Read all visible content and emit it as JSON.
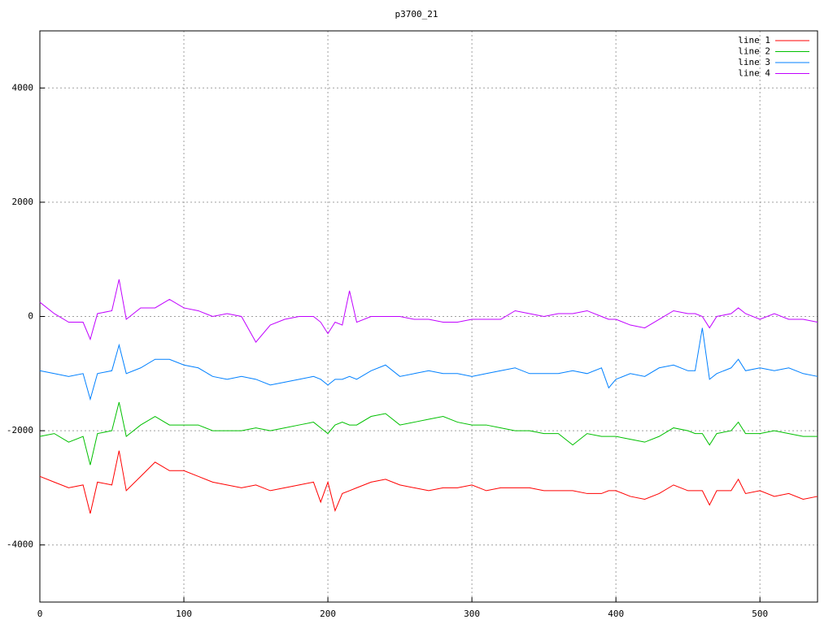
{
  "chart_data": {
    "type": "line",
    "title": "p3700_21",
    "x": [
      0,
      10,
      20,
      30,
      35,
      40,
      50,
      55,
      60,
      70,
      80,
      90,
      100,
      110,
      120,
      130,
      140,
      150,
      160,
      170,
      180,
      190,
      195,
      200,
      205,
      210,
      215,
      220,
      230,
      240,
      250,
      260,
      270,
      280,
      290,
      300,
      310,
      320,
      330,
      340,
      350,
      360,
      370,
      380,
      390,
      395,
      400,
      410,
      420,
      430,
      440,
      450,
      455,
      460,
      465,
      470,
      480,
      485,
      490,
      500,
      510,
      520,
      530,
      540
    ],
    "series": [
      {
        "name": "line 1",
        "color": "#ff0000",
        "values": [
          -2800,
          -2900,
          -3000,
          -2950,
          -3450,
          -2900,
          -2950,
          -2350,
          -3050,
          -2800,
          -2550,
          -2700,
          -2700,
          -2800,
          -2900,
          -2950,
          -3000,
          -2950,
          -3050,
          -3000,
          -2950,
          -2900,
          -3250,
          -2900,
          -3400,
          -3100,
          -3050,
          -3000,
          -2900,
          -2850,
          -2950,
          -3000,
          -3050,
          -3000,
          -3000,
          -2950,
          -3050,
          -3000,
          -3000,
          -3000,
          -3050,
          -3050,
          -3050,
          -3100,
          -3100,
          -3050,
          -3050,
          -3150,
          -3200,
          -3100,
          -2950,
          -3050,
          -3050,
          -3050,
          -3300,
          -3050,
          -3050,
          -2850,
          -3100,
          -3050,
          -3150,
          -3100,
          -3200,
          -3150
        ]
      },
      {
        "name": "line 2",
        "color": "#00c000",
        "values": [
          -2100,
          -2050,
          -2200,
          -2100,
          -2600,
          -2050,
          -2000,
          -1500,
          -2100,
          -1900,
          -1750,
          -1900,
          -1900,
          -1900,
          -2000,
          -2000,
          -2000,
          -1950,
          -2000,
          -1950,
          -1900,
          -1850,
          -1950,
          -2050,
          -1900,
          -1850,
          -1900,
          -1900,
          -1750,
          -1700,
          -1900,
          -1850,
          -1800,
          -1750,
          -1850,
          -1900,
          -1900,
          -1950,
          -2000,
          -2000,
          -2050,
          -2050,
          -2250,
          -2050,
          -2100,
          -2100,
          -2100,
          -2150,
          -2200,
          -2100,
          -1950,
          -2000,
          -2050,
          -2050,
          -2250,
          -2050,
          -2000,
          -1850,
          -2050,
          -2050,
          -2000,
          -2050,
          -2100,
          -2100
        ]
      },
      {
        "name": "line 3",
        "color": "#0080ff",
        "values": [
          -950,
          -1000,
          -1050,
          -1000,
          -1450,
          -1000,
          -950,
          -500,
          -1000,
          -900,
          -750,
          -750,
          -850,
          -900,
          -1050,
          -1100,
          -1050,
          -1100,
          -1200,
          -1150,
          -1100,
          -1050,
          -1100,
          -1200,
          -1100,
          -1100,
          -1050,
          -1100,
          -950,
          -850,
          -1050,
          -1000,
          -950,
          -1000,
          -1000,
          -1050,
          -1000,
          -950,
          -900,
          -1000,
          -1000,
          -1000,
          -950,
          -1000,
          -900,
          -1250,
          -1100,
          -1000,
          -1050,
          -900,
          -850,
          -950,
          -950,
          -200,
          -1100,
          -1000,
          -900,
          -750,
          -950,
          -900,
          -950,
          -900,
          -1000,
          -1050
        ]
      },
      {
        "name": "line 4",
        "color": "#c000ff",
        "values": [
          250,
          50,
          -100,
          -100,
          -400,
          50,
          100,
          650,
          -50,
          150,
          150,
          300,
          150,
          100,
          0,
          50,
          0,
          -450,
          -150,
          -50,
          0,
          0,
          -100,
          -300,
          -100,
          -150,
          450,
          -100,
          0,
          0,
          0,
          -50,
          -50,
          -100,
          -100,
          -50,
          -50,
          -50,
          100,
          50,
          0,
          50,
          50,
          100,
          0,
          -50,
          -50,
          -150,
          -200,
          -50,
          100,
          50,
          50,
          0,
          -200,
          0,
          50,
          150,
          50,
          -50,
          50,
          -50,
          -50,
          -100
        ]
      }
    ],
    "xlim": [
      0,
      540
    ],
    "xticks": [
      0,
      100,
      200,
      300,
      400,
      500
    ],
    "ylim": [
      -5000,
      5000
    ],
    "yticks": [
      -4000,
      -2000,
      0,
      2000,
      4000
    ],
    "grid": true,
    "legend": "top-right"
  }
}
